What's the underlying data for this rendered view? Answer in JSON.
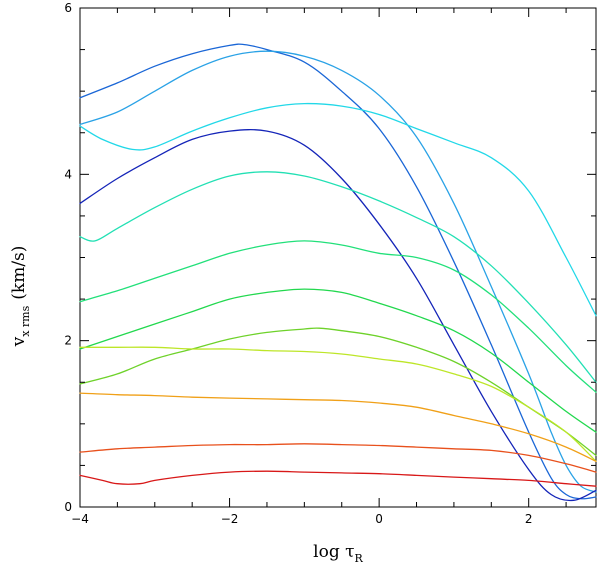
{
  "chart_data": {
    "type": "line",
    "title": "",
    "xlabel": {
      "main": "log τ",
      "sub": "R"
    },
    "ylabel": {
      "main": "v",
      "sub": "x rms",
      "unit": "(km/s)"
    },
    "xlim": [
      -4,
      2.9
    ],
    "ylim": [
      0,
      6
    ],
    "xticks": [
      -4,
      -2,
      0,
      2
    ],
    "yticks": [
      0,
      2,
      4,
      6
    ],
    "grid": false,
    "legend": "none",
    "series": [
      {
        "name": "s1",
        "color": "#1a66d6",
        "x": [
          -4,
          -3.5,
          -3,
          -2.5,
          -2,
          -1.8,
          -1.5,
          -1,
          -0.5,
          0,
          0.5,
          1,
          1.5,
          2,
          2.3,
          2.5,
          2.7,
          2.9
        ],
        "y": [
          4.92,
          5.1,
          5.3,
          5.45,
          5.55,
          5.56,
          5.5,
          5.35,
          5.0,
          4.55,
          3.85,
          2.95,
          1.95,
          0.9,
          0.35,
          0.15,
          0.1,
          0.12
        ]
      },
      {
        "name": "s2",
        "color": "#2aa2e6",
        "x": [
          -4,
          -3.5,
          -3,
          -2.5,
          -2,
          -1.5,
          -1,
          -0.5,
          0,
          0.5,
          1,
          1.5,
          2,
          2.3,
          2.5,
          2.7,
          2.9
        ],
        "y": [
          4.6,
          4.75,
          5.0,
          5.25,
          5.42,
          5.48,
          5.42,
          5.25,
          4.95,
          4.45,
          3.65,
          2.65,
          1.6,
          0.9,
          0.5,
          0.25,
          0.18
        ]
      },
      {
        "name": "s3",
        "color": "#22d8e8",
        "x": [
          -4,
          -3.7,
          -3.3,
          -3,
          -2.5,
          -2,
          -1.5,
          -1,
          -0.5,
          0,
          0.5,
          1,
          1.5,
          2,
          2.5,
          2.9
        ],
        "y": [
          4.58,
          4.42,
          4.3,
          4.33,
          4.52,
          4.68,
          4.8,
          4.85,
          4.82,
          4.72,
          4.55,
          4.38,
          4.2,
          3.8,
          3.0,
          2.3
        ]
      },
      {
        "name": "s4",
        "color": "#1424b8",
        "x": [
          -4,
          -3.5,
          -3,
          -2.5,
          -2,
          -1.5,
          -1,
          -0.5,
          0,
          0.5,
          1,
          1.5,
          2,
          2.3,
          2.6,
          2.9
        ],
        "y": [
          3.65,
          3.95,
          4.2,
          4.42,
          4.52,
          4.52,
          4.35,
          3.95,
          3.4,
          2.75,
          1.95,
          1.15,
          0.45,
          0.15,
          0.08,
          0.2
        ]
      },
      {
        "name": "s5",
        "color": "#22e0b4",
        "x": [
          -4,
          -3.8,
          -3.5,
          -3,
          -2.5,
          -2,
          -1.5,
          -1,
          -0.5,
          0,
          0.5,
          1,
          1.5,
          2,
          2.5,
          2.9
        ],
        "y": [
          3.25,
          3.2,
          3.35,
          3.6,
          3.82,
          3.98,
          4.03,
          3.98,
          3.85,
          3.68,
          3.48,
          3.25,
          2.9,
          2.45,
          1.95,
          1.5
        ]
      },
      {
        "name": "s6",
        "color": "#22e07a",
        "x": [
          -4,
          -3.5,
          -3,
          -2.5,
          -2,
          -1.5,
          -1,
          -0.5,
          0,
          0.5,
          1,
          1.5,
          2,
          2.5,
          2.9
        ],
        "y": [
          2.47,
          2.6,
          2.75,
          2.9,
          3.05,
          3.15,
          3.2,
          3.15,
          3.05,
          3.0,
          2.85,
          2.55,
          2.15,
          1.7,
          1.38
        ]
      },
      {
        "name": "s7",
        "color": "#22d84e",
        "x": [
          -4,
          -3.5,
          -3,
          -2.5,
          -2,
          -1.5,
          -1,
          -0.5,
          0,
          0.5,
          1,
          1.5,
          2,
          2.5,
          2.9
        ],
        "y": [
          1.9,
          2.05,
          2.2,
          2.35,
          2.5,
          2.58,
          2.62,
          2.58,
          2.45,
          2.3,
          2.12,
          1.85,
          1.5,
          1.15,
          0.9
        ]
      },
      {
        "name": "s8",
        "color": "#6ed22a",
        "x": [
          -4,
          -3.5,
          -3,
          -2.5,
          -2,
          -1.5,
          -1,
          -0.8,
          -0.5,
          0,
          0.5,
          1,
          1.5,
          2,
          2.5,
          2.9
        ],
        "y": [
          1.48,
          1.6,
          1.78,
          1.9,
          2.02,
          2.1,
          2.14,
          2.15,
          2.12,
          2.05,
          1.92,
          1.75,
          1.5,
          1.2,
          0.9,
          0.62
        ]
      },
      {
        "name": "s9",
        "color": "#bde628",
        "x": [
          -4,
          -3.5,
          -3,
          -2.5,
          -2,
          -1.5,
          -1,
          -0.5,
          0,
          0.5,
          1,
          1.5,
          2,
          2.5,
          2.9
        ],
        "y": [
          1.92,
          1.92,
          1.92,
          1.9,
          1.9,
          1.88,
          1.87,
          1.84,
          1.78,
          1.72,
          1.6,
          1.45,
          1.2,
          0.9,
          0.55
        ]
      },
      {
        "name": "s10",
        "color": "#f0a018",
        "x": [
          -4,
          -3.5,
          -3,
          -2.5,
          -2,
          -1.5,
          -1,
          -0.5,
          0,
          0.5,
          1,
          1.5,
          2,
          2.5,
          2.9
        ],
        "y": [
          1.37,
          1.35,
          1.34,
          1.32,
          1.31,
          1.3,
          1.29,
          1.28,
          1.25,
          1.2,
          1.1,
          1.0,
          0.88,
          0.72,
          0.55
        ]
      },
      {
        "name": "s11",
        "color": "#e8501c",
        "x": [
          -4,
          -3.5,
          -3,
          -2.5,
          -2,
          -1.5,
          -1,
          -0.5,
          0,
          0.5,
          1,
          1.5,
          2,
          2.5,
          2.9
        ],
        "y": [
          0.66,
          0.7,
          0.72,
          0.74,
          0.75,
          0.75,
          0.76,
          0.75,
          0.74,
          0.72,
          0.7,
          0.68,
          0.62,
          0.52,
          0.42
        ]
      },
      {
        "name": "s12",
        "color": "#d81818",
        "x": [
          -4,
          -3.7,
          -3.5,
          -3.2,
          -3,
          -2.5,
          -2,
          -1.5,
          -1,
          -0.5,
          0,
          0.5,
          1,
          1.5,
          2,
          2.5,
          2.9
        ],
        "y": [
          0.38,
          0.32,
          0.28,
          0.28,
          0.32,
          0.38,
          0.42,
          0.43,
          0.42,
          0.41,
          0.4,
          0.38,
          0.36,
          0.34,
          0.32,
          0.28,
          0.25
        ]
      }
    ]
  }
}
